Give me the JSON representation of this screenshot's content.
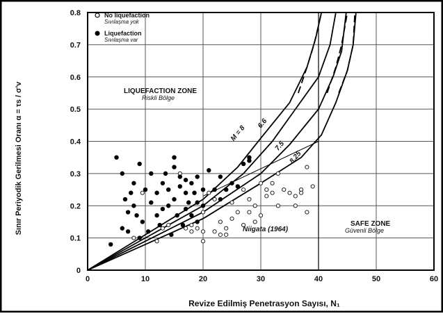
{
  "chart_data": {
    "type": "scatter",
    "xlabel": "Revize Edilmiş Penetrasyon Sayısı,  N₁",
    "ylabel": "Sınır Periyodik Gerilmesi Oranı  α = τs / σ'v",
    "xlim": [
      0,
      60
    ],
    "ylim": [
      0,
      0.8
    ],
    "x_ticks": [
      0,
      10,
      20,
      30,
      40,
      50,
      60
    ],
    "y_ticks": [
      0,
      0.1,
      0.2,
      0.3,
      0.4,
      0.5,
      0.6,
      0.7,
      0.8
    ],
    "y_tick_labels": [
      "0",
      "0.1",
      "0.2",
      "0.3",
      "0.4",
      "0.5",
      "0.6",
      "0.7",
      "0.8"
    ],
    "grid": true,
    "legend_position": "top-left",
    "series": [
      {
        "name": "No liquefaction",
        "name_sub": "Sıvılaşma yok",
        "marker": "open-circle",
        "points": [
          [
            8,
            0.1
          ],
          [
            9.5,
            0.24
          ],
          [
            12,
            0.09
          ],
          [
            13,
            0.13
          ],
          [
            14,
            0.14
          ],
          [
            16,
            0.3
          ],
          [
            17,
            0.13
          ],
          [
            18,
            0.14
          ],
          [
            18,
            0.12
          ],
          [
            19,
            0.13
          ],
          [
            20,
            0.09
          ],
          [
            20,
            0.12
          ],
          [
            20,
            0.18
          ],
          [
            21,
            0.24
          ],
          [
            22,
            0.12
          ],
          [
            22,
            0.22
          ],
          [
            23,
            0.15
          ],
          [
            23,
            0.11
          ],
          [
            24,
            0.13
          ],
          [
            24,
            0.11
          ],
          [
            25,
            0.21
          ],
          [
            25,
            0.16
          ],
          [
            26,
            0.26
          ],
          [
            26,
            0.18
          ],
          [
            27,
            0.14
          ],
          [
            27,
            0.25
          ],
          [
            28,
            0.22
          ],
          [
            28,
            0.18
          ],
          [
            29,
            0.2
          ],
          [
            29,
            0.15
          ],
          [
            30,
            0.17
          ],
          [
            30,
            0.27
          ],
          [
            31,
            0.25
          ],
          [
            31,
            0.23
          ],
          [
            32,
            0.27
          ],
          [
            32,
            0.24
          ],
          [
            33,
            0.3
          ],
          [
            33,
            0.2
          ],
          [
            34,
            0.25
          ],
          [
            35,
            0.24
          ],
          [
            36,
            0.2
          ],
          [
            36,
            0.23
          ],
          [
            37,
            0.25
          ],
          [
            37,
            0.24
          ],
          [
            38,
            0.18
          ],
          [
            38,
            0.32
          ],
          [
            39,
            0.26
          ]
        ]
      },
      {
        "name": "Liquefaction",
        "name_sub": "Sıvılaşma var",
        "marker": "filled-circle",
        "points": [
          [
            4,
            0.08
          ],
          [
            5,
            0.35
          ],
          [
            6,
            0.13
          ],
          [
            6,
            0.3
          ],
          [
            6.5,
            0.22
          ],
          [
            7,
            0.12
          ],
          [
            7,
            0.18
          ],
          [
            7.5,
            0.24
          ],
          [
            8,
            0.2
          ],
          [
            8,
            0.27
          ],
          [
            8.5,
            0.17
          ],
          [
            9,
            0.33
          ],
          [
            9,
            0.1
          ],
          [
            9.5,
            0.15
          ],
          [
            10,
            0.25
          ],
          [
            10.5,
            0.12
          ],
          [
            11,
            0.21
          ],
          [
            11,
            0.3
          ],
          [
            12,
            0.17
          ],
          [
            12,
            0.24
          ],
          [
            12.5,
            0.14
          ],
          [
            13,
            0.27
          ],
          [
            13,
            0.19
          ],
          [
            13.5,
            0.3
          ],
          [
            14,
            0.25
          ],
          [
            14,
            0.2
          ],
          [
            14.5,
            0.11
          ],
          [
            15,
            0.35
          ],
          [
            15,
            0.32
          ],
          [
            15,
            0.22
          ],
          [
            15.5,
            0.17
          ],
          [
            16,
            0.26
          ],
          [
            16,
            0.29
          ],
          [
            16.5,
            0.14
          ],
          [
            17,
            0.24
          ],
          [
            17,
            0.28
          ],
          [
            17.5,
            0.21
          ],
          [
            18,
            0.27
          ],
          [
            18,
            0.17
          ],
          [
            18.5,
            0.24
          ],
          [
            19,
            0.29
          ],
          [
            19,
            0.21
          ],
          [
            20,
            0.25
          ],
          [
            20,
            0.2
          ],
          [
            21,
            0.31
          ],
          [
            22,
            0.25
          ],
          [
            23,
            0.29
          ],
          [
            23,
            0.22
          ],
          [
            24,
            0.25
          ],
          [
            25,
            0.27
          ],
          [
            26,
            0.26
          ],
          [
            27,
            0.33
          ],
          [
            28,
            0.35
          ],
          [
            28,
            0.34
          ],
          [
            19,
            0.15
          ],
          [
            17,
            0.19
          ]
        ]
      }
    ],
    "curves": [
      {
        "label": "M = 8",
        "style": "solid",
        "points": [
          [
            0,
            0
          ],
          [
            10,
            0.11
          ],
          [
            20,
            0.22
          ],
          [
            26,
            0.32
          ],
          [
            30,
            0.41
          ],
          [
            35,
            0.52
          ],
          [
            38,
            0.63
          ],
          [
            39.5,
            0.72
          ],
          [
            40.5,
            0.8
          ]
        ],
        "label_at": [
          25.3,
          0.4
        ]
      },
      {
        "label": "6.6",
        "style": "solid",
        "points": [
          [
            0,
            0
          ],
          [
            10,
            0.1
          ],
          [
            20,
            0.2
          ],
          [
            27,
            0.3
          ],
          [
            32,
            0.4
          ],
          [
            36,
            0.5
          ],
          [
            40,
            0.6
          ],
          [
            42,
            0.7
          ],
          [
            43,
            0.8
          ]
        ],
        "label_at": [
          30,
          0.44
        ]
      },
      {
        "label": "7.5",
        "style": "solid",
        "points": [
          [
            0,
            0
          ],
          [
            10,
            0.09
          ],
          [
            20,
            0.18
          ],
          [
            30,
            0.3
          ],
          [
            35,
            0.39
          ],
          [
            40,
            0.5
          ],
          [
            42.5,
            0.6
          ],
          [
            44,
            0.68
          ],
          [
            44.8,
            0.8
          ]
        ],
        "label_at": [
          33,
          0.37
        ]
      },
      {
        "label": "8.25",
        "style": "solid",
        "points": [
          [
            0,
            0
          ],
          [
            10,
            0.08
          ],
          [
            20,
            0.16
          ],
          [
            30,
            0.27
          ],
          [
            37,
            0.35
          ],
          [
            40.5,
            0.42
          ],
          [
            43,
            0.52
          ],
          [
            45,
            0.62
          ],
          [
            46,
            0.7
          ],
          [
            46.5,
            0.8
          ]
        ],
        "label_at": [
          35.5,
          0.33
        ]
      }
    ],
    "dashed_curves": [
      [
        [
          36.5,
          0.55
        ],
        [
          38,
          0.63
        ],
        [
          39.2,
          0.7
        ],
        [
          40,
          0.76
        ],
        [
          40.5,
          0.8
        ]
      ],
      [
        [
          41.5,
          0.55
        ],
        [
          43,
          0.63
        ],
        [
          44,
          0.7
        ],
        [
          44.5,
          0.75
        ],
        [
          45,
          0.8
        ]
      ],
      [
        [
          43.5,
          0.55
        ],
        [
          45,
          0.62
        ],
        [
          46,
          0.7
        ],
        [
          46.3,
          0.8
        ]
      ]
    ],
    "niigata_line": [
      [
        20,
        0.23
      ],
      [
        40,
        0.4
      ]
    ],
    "safe_zone_boundary": [
      [
        40,
        0.8
      ],
      [
        40,
        0
      ]
    ],
    "annotations": {
      "liquefaction_zone": "LIQUEFACTION ZONE",
      "liquefaction_zone_sub": "Riskli Bölge",
      "safe_zone": "SAFE ZONE",
      "safe_zone_sub": "Güvenli Bölge",
      "niigata": "Niigata (1964)"
    }
  }
}
